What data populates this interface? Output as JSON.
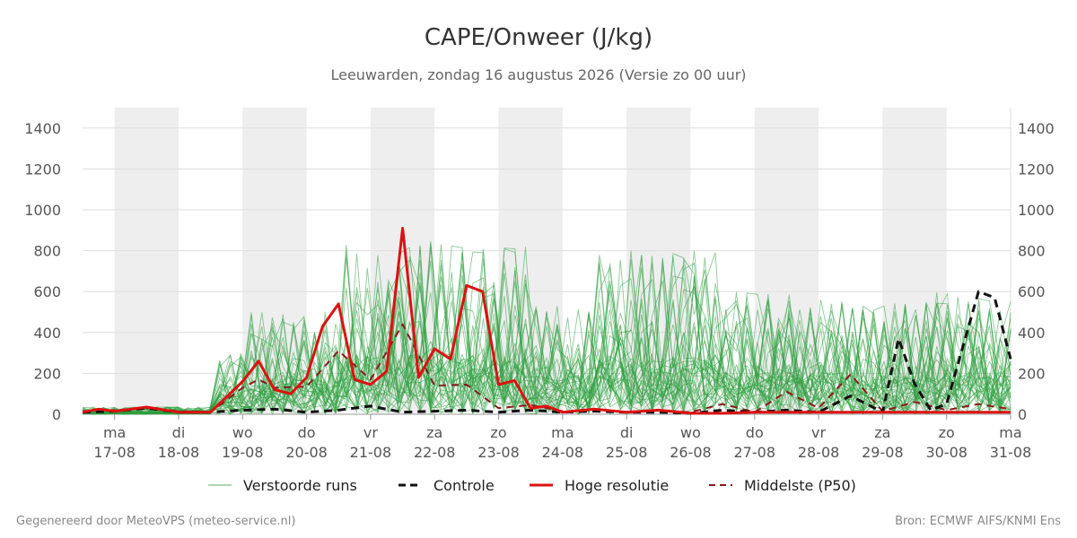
{
  "chart_data": {
    "type": "line",
    "title": "CAPE/Onweer (J/kg)",
    "subtitle": "Leeuwarden, zondag 16 augustus 2026 (Versie zo 00 uur)",
    "xlabel": "",
    "ylabel": "",
    "ylim": [
      0,
      1500
    ],
    "y_ticks": [
      0,
      200,
      400,
      600,
      800,
      1000,
      1200,
      1400
    ],
    "x_range": [
      "2026-08-16T12:00",
      "2026-08-31T00:00"
    ],
    "grid": "horizontal",
    "weekend_shading": true,
    "day_ticks": [
      {
        "date": "2026-08-17",
        "day": "ma",
        "label": "17-08"
      },
      {
        "date": "2026-08-18",
        "day": "di",
        "label": "18-08"
      },
      {
        "date": "2026-08-19",
        "day": "wo",
        "label": "19-08"
      },
      {
        "date": "2026-08-20",
        "day": "do",
        "label": "20-08"
      },
      {
        "date": "2026-08-21",
        "day": "vr",
        "label": "21-08"
      },
      {
        "date": "2026-08-22",
        "day": "za",
        "label": "22-08"
      },
      {
        "date": "2026-08-23",
        "day": "zo",
        "label": "23-08"
      },
      {
        "date": "2026-08-24",
        "day": "ma",
        "label": "24-08"
      },
      {
        "date": "2026-08-25",
        "day": "di",
        "label": "25-08"
      },
      {
        "date": "2026-08-26",
        "day": "wo",
        "label": "26-08"
      },
      {
        "date": "2026-08-27",
        "day": "do",
        "label": "27-08"
      },
      {
        "date": "2026-08-28",
        "day": "vr",
        "label": "28-08"
      },
      {
        "date": "2026-08-29",
        "day": "za",
        "label": "29-08"
      },
      {
        "date": "2026-08-30",
        "day": "zo",
        "label": "30-08"
      },
      {
        "date": "2026-08-31",
        "day": "ma",
        "label": "31-08"
      }
    ],
    "shaded_periods": [
      [
        "2026-08-17T00:00",
        "2026-08-18T00:00"
      ],
      [
        "2026-08-19T00:00",
        "2026-08-20T00:00"
      ],
      [
        "2026-08-21T00:00",
        "2026-08-22T00:00"
      ],
      [
        "2026-08-23T00:00",
        "2026-08-24T00:00"
      ],
      [
        "2026-08-25T00:00",
        "2026-08-26T00:00"
      ],
      [
        "2026-08-27T00:00",
        "2026-08-28T00:00"
      ],
      [
        "2026-08-29T00:00",
        "2026-08-30T00:00"
      ]
    ],
    "legend_position": "bottom",
    "colors": {
      "ensemble": "#2e9e3e",
      "control": "#111111",
      "high_res": "#dd1111",
      "median": "#8b1a1a",
      "weekend": "#eeeeee",
      "grid": "#dddddd"
    },
    "series": [
      {
        "name": "Controle",
        "style": "dashed",
        "x": [
          "2026-08-16T12:00",
          "2026-08-17T00:00",
          "2026-08-17T12:00",
          "2026-08-18T00:00",
          "2026-08-18T12:00",
          "2026-08-19T00:00",
          "2026-08-19T12:00",
          "2026-08-20T00:00",
          "2026-08-20T12:00",
          "2026-08-21T00:00",
          "2026-08-21T12:00",
          "2026-08-22T00:00",
          "2026-08-22T12:00",
          "2026-08-23T00:00",
          "2026-08-23T12:00",
          "2026-08-24T00:00",
          "2026-08-24T12:00",
          "2026-08-25T00:00",
          "2026-08-25T12:00",
          "2026-08-26T00:00",
          "2026-08-26T12:00",
          "2026-08-27T00:00",
          "2026-08-27T12:00",
          "2026-08-28T00:00",
          "2026-08-28T12:00",
          "2026-08-29T00:00",
          "2026-08-29T06:00",
          "2026-08-29T12:00",
          "2026-08-29T18:00",
          "2026-08-30T00:00",
          "2026-08-30T12:00",
          "2026-08-30T18:00",
          "2026-08-31T00:00"
        ],
        "values": [
          10,
          15,
          30,
          10,
          10,
          20,
          25,
          10,
          20,
          40,
          10,
          15,
          20,
          10,
          20,
          10,
          15,
          10,
          10,
          5,
          20,
          10,
          20,
          10,
          90,
          10,
          370,
          150,
          20,
          50,
          600,
          570,
          270
        ]
      },
      {
        "name": "Hoge resolutie",
        "style": "solid",
        "x": [
          "2026-08-16T12:00",
          "2026-08-16T18:00",
          "2026-08-17T00:00",
          "2026-08-17T12:00",
          "2026-08-18T00:00",
          "2026-08-18T12:00",
          "2026-08-19T00:00",
          "2026-08-19T06:00",
          "2026-08-19T12:00",
          "2026-08-19T18:00",
          "2026-08-20T00:00",
          "2026-08-20T06:00",
          "2026-08-20T12:00",
          "2026-08-20T18:00",
          "2026-08-21T00:00",
          "2026-08-21T06:00",
          "2026-08-21T12:00",
          "2026-08-21T18:00",
          "2026-08-22T00:00",
          "2026-08-22T06:00",
          "2026-08-22T12:00",
          "2026-08-22T18:00",
          "2026-08-23T00:00",
          "2026-08-23T06:00",
          "2026-08-23T12:00",
          "2026-08-23T18:00",
          "2026-08-24T00:00",
          "2026-08-24T12:00",
          "2026-08-25T00:00",
          "2026-08-25T12:00",
          "2026-08-26T00:00",
          "2026-08-26T12:00",
          "2026-08-27T00:00",
          "2026-08-27T12:00",
          "2026-08-28T00:00",
          "2026-08-28T12:00",
          "2026-08-29T00:00",
          "2026-08-29T12:00",
          "2026-08-30T00:00",
          "2026-08-30T12:00",
          "2026-08-31T00:00"
        ],
        "values": [
          10,
          25,
          15,
          35,
          10,
          10,
          160,
          260,
          120,
          100,
          180,
          430,
          540,
          170,
          145,
          210,
          910,
          180,
          320,
          270,
          630,
          600,
          145,
          165,
          30,
          40,
          10,
          25,
          10,
          20,
          5,
          5,
          10,
          10,
          10,
          10,
          10,
          10,
          10,
          10,
          10
        ]
      },
      {
        "name": "Middelste (P50)",
        "style": "dashed",
        "x": [
          "2026-08-16T12:00",
          "2026-08-17T00:00",
          "2026-08-17T12:00",
          "2026-08-18T00:00",
          "2026-08-18T12:00",
          "2026-08-19T00:00",
          "2026-08-19T06:00",
          "2026-08-19T12:00",
          "2026-08-20T00:00",
          "2026-08-20T12:00",
          "2026-08-21T00:00",
          "2026-08-21T12:00",
          "2026-08-22T00:00",
          "2026-08-22T12:00",
          "2026-08-23T00:00",
          "2026-08-23T12:00",
          "2026-08-24T00:00",
          "2026-08-24T12:00",
          "2026-08-25T00:00",
          "2026-08-25T12:00",
          "2026-08-26T00:00",
          "2026-08-26T12:00",
          "2026-08-27T00:00",
          "2026-08-27T12:00",
          "2026-08-28T00:00",
          "2026-08-28T12:00",
          "2026-08-29T00:00",
          "2026-08-29T12:00",
          "2026-08-30T00:00",
          "2026-08-30T12:00",
          "2026-08-31T00:00"
        ],
        "values": [
          15,
          20,
          30,
          15,
          10,
          130,
          170,
          130,
          135,
          310,
          170,
          440,
          140,
          145,
          30,
          45,
          15,
          20,
          10,
          20,
          10,
          50,
          10,
          110,
          30,
          195,
          15,
          60,
          20,
          50,
          25
        ]
      }
    ],
    "ensemble_members_label": "Verstoorde runs"
  },
  "legend": [
    {
      "label": "Verstoorde runs",
      "key": "ensemble"
    },
    {
      "label": "Controle",
      "key": "control"
    },
    {
      "label": "Hoge resolutie",
      "key": "high_res"
    },
    {
      "label": "Middelste (P50)",
      "key": "median"
    }
  ],
  "footer": {
    "left": "Gegenereerd door MeteoVPS (meteo-service.nl)",
    "right": "Bron: ECMWF AIFS/KNMI Ens"
  }
}
